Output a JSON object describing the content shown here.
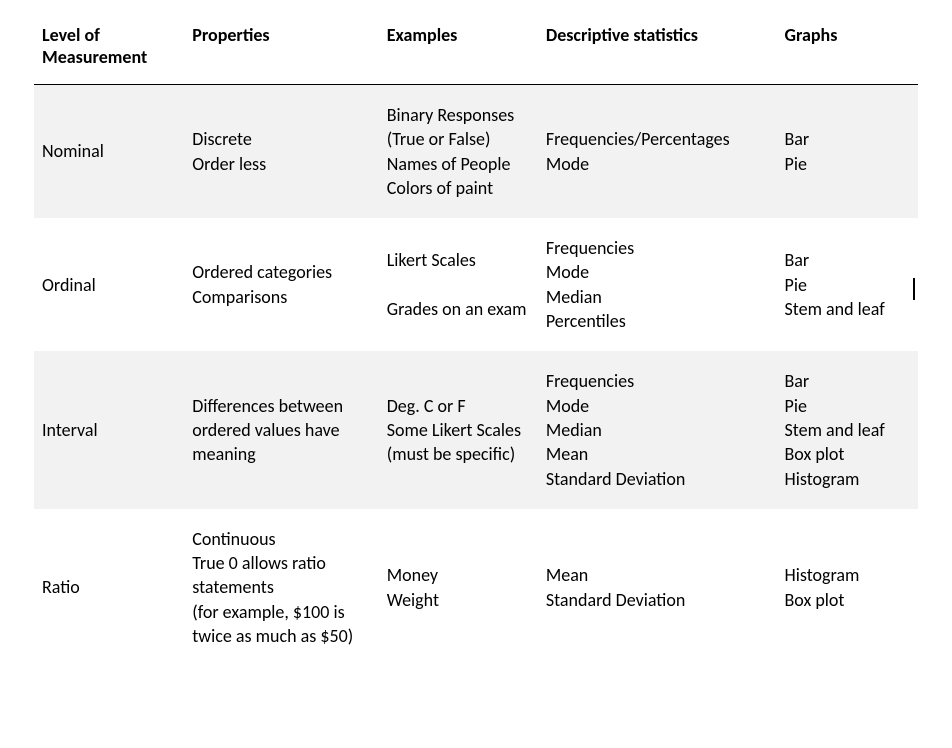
{
  "table": {
    "type": "table",
    "background_color": "#ffffff",
    "row_colors": {
      "odd": "#f2f2f2",
      "even": "#ffffff"
    },
    "header_border_color": "#000000",
    "font_family": "Calibri",
    "header_fontsize_pt": 13,
    "body_fontsize_pt": 13,
    "text_color": "#000000",
    "column_widths_pct": [
      17,
      22,
      18,
      27,
      16
    ],
    "columns": [
      "Level of Measurement",
      "Properties",
      "Examples",
      "Descriptive statistics",
      "Graphs"
    ],
    "rows": [
      {
        "level": "Nominal",
        "properties": "Discrete\nOrder less",
        "examples": "Binary Responses\n(True or False)\nNames of People\nColors of paint",
        "stats": "Frequencies/Percentages\nMode",
        "graphs": "Bar\nPie"
      },
      {
        "level": "Ordinal",
        "properties": "Ordered categories\nComparisons",
        "examples": "Likert Scales\n\nGrades on an exam",
        "stats": "Frequencies\nMode\nMedian\nPercentiles",
        "graphs": "Bar\nPie\nStem and leaf"
      },
      {
        "level": "Interval",
        "properties": "Differences between ordered values have meaning",
        "examples": "Deg. C or F\nSome Likert Scales (must be specific)",
        "stats": "Frequencies\nMode\nMedian\nMean\nStandard Deviation",
        "graphs": "Bar\nPie\nStem and leaf\nBox plot\nHistogram"
      },
      {
        "level": "Ratio",
        "properties": "Continuous\nTrue 0 allows ratio statements\n(for example, $100 is twice as much as $50)",
        "examples": "Money\nWeight",
        "stats": "Mean\nStandard Deviation",
        "graphs": "Histogram\nBox plot"
      }
    ]
  }
}
